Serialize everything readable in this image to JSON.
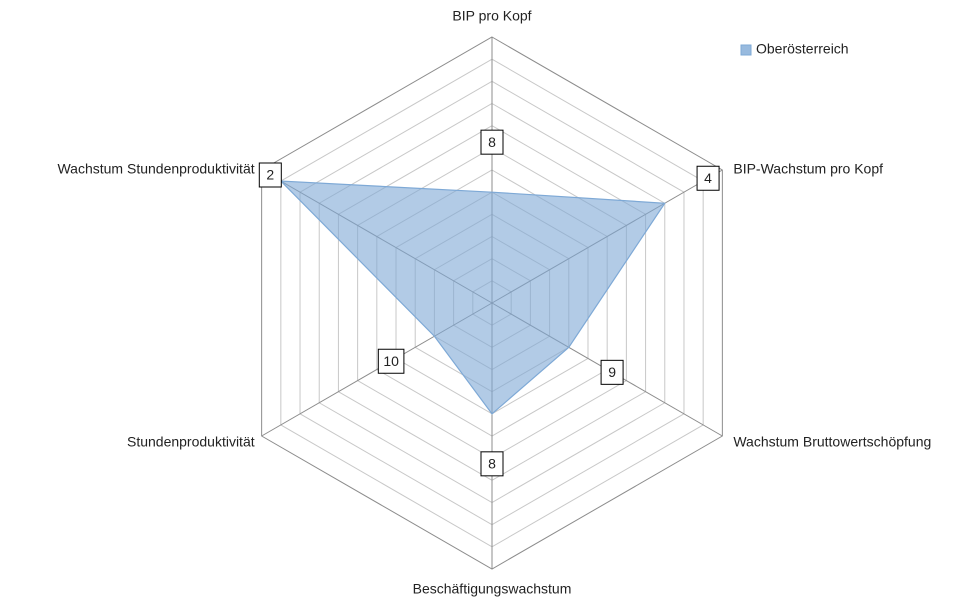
{
  "chart_data": {
    "type": "radar",
    "categories": [
      "BIP pro Kopf",
      "BIP-Wachstum pro Kopf",
      "Wachstum Bruttowertschöpfung",
      "Beschäftigungswachstum",
      "Stundenproduktivität",
      "Wachstum Stundenproduktivität"
    ],
    "series": [
      {
        "name": "Oberösterreich",
        "color": "#7ea9d6",
        "values": [
          8,
          4,
          9,
          8,
          10,
          2
        ]
      }
    ],
    "rlim": [
      1,
      13
    ],
    "reversed": true,
    "rticks": [
      1,
      2,
      3,
      4,
      5,
      6,
      7,
      8,
      9,
      10,
      11,
      12,
      13
    ],
    "grid": true,
    "legend": "top-right"
  }
}
